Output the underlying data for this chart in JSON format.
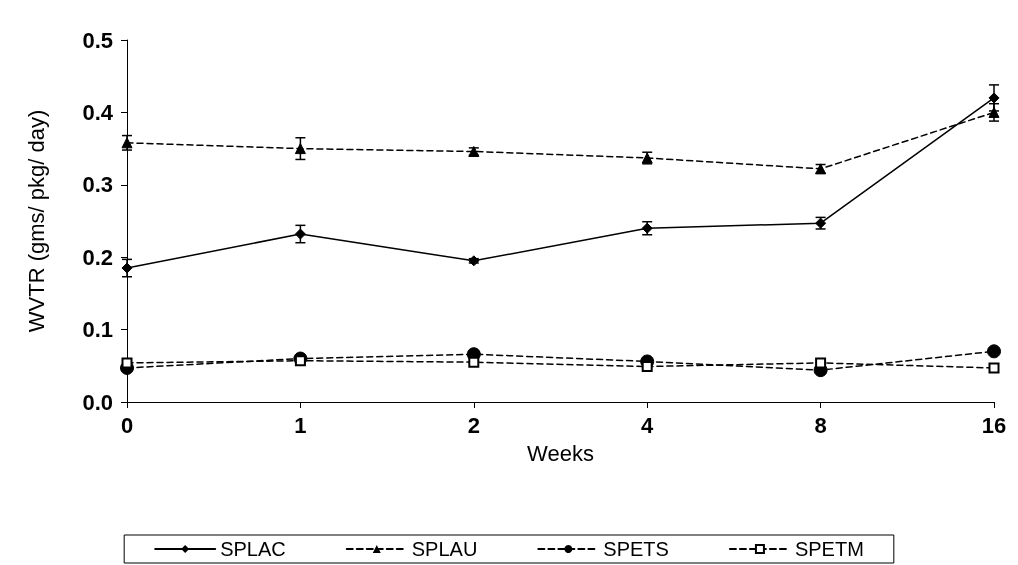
{
  "chart_data": {
    "type": "line",
    "xlabel": "Weeks",
    "ylabel": "WVTR (gms/ pkg/ day)",
    "categories": [
      "0",
      "1",
      "2",
      "4",
      "8",
      "16"
    ],
    "ylim": [
      0,
      0.5
    ],
    "yticks": [
      {
        "value": 0,
        "label": "0.0"
      },
      0.1,
      0.2,
      0.3,
      0.4,
      0.5
    ],
    "grid": false,
    "legend": "bottom",
    "series": [
      {
        "name": "SPLAC",
        "color": "#000000",
        "marker": "diamond",
        "line_style": "solid",
        "values": [
          0.185,
          0.232,
          0.195,
          0.24,
          0.247,
          0.42
        ],
        "errors": [
          0.012,
          0.012,
          0.003,
          0.009,
          0.008,
          0.018
        ]
      },
      {
        "name": "SPLAU",
        "color": "#000000",
        "marker": "triangle",
        "line_style": "dashed",
        "values": [
          0.358,
          0.35,
          0.346,
          0.337,
          0.322,
          0.4
        ],
        "errors": [
          0.01,
          0.015,
          0.005,
          0.008,
          0.006,
          0.012
        ]
      },
      {
        "name": "SPETS",
        "color": "#000000",
        "marker": "circle",
        "line_style": "dashed",
        "values": [
          0.047,
          0.06,
          0.066,
          0.056,
          0.044,
          0.07
        ]
      },
      {
        "name": "SPETM",
        "color": "#000000",
        "marker": "square",
        "line_style": "dashed",
        "values": [
          0.054,
          0.057,
          0.055,
          0.049,
          0.054,
          0.047
        ]
      }
    ]
  }
}
